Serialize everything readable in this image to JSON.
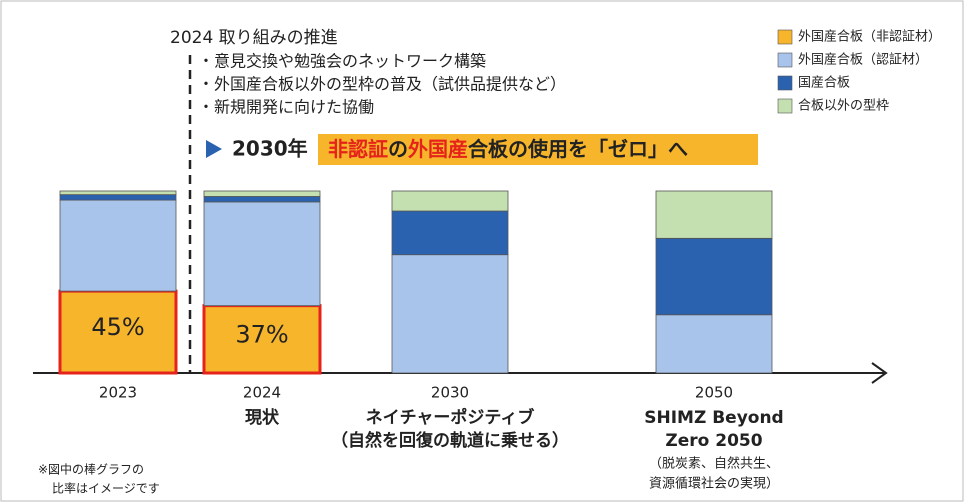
{
  "chart_data": {
    "type": "stacked-bar",
    "heading": "2024 取り組みの推進",
    "bullets": [
      "・意見交換や勉強会のネットワーク構築",
      "・外国産合板以外の型枠の普及（試供品提供など）",
      "・新規開発に向けた協働"
    ],
    "goal_year": "2030年",
    "goal": [
      {
        "text": "非認証",
        "color": "#e5231b"
      },
      {
        "text": "の",
        "color": "#222222"
      },
      {
        "text": "外国産",
        "color": "#e5231b"
      },
      {
        "text": "合板の使用を「ゼロ」へ",
        "color": "#222222"
      }
    ],
    "goal_background": "#f7b52c",
    "categories": [
      "2023",
      "2024",
      "2030",
      "2050"
    ],
    "category_sublabels": [
      null,
      [
        "現状"
      ],
      [
        "ネイチャーポジティブ",
        "（自然を回復の軌道に乗せる）"
      ],
      [
        "SHIMZ Beyond",
        "Zero 2050",
        "（脱炭素、自然共生、",
        "資源循環社会の実現）"
      ]
    ],
    "series": [
      {
        "name": "外国産合板（非認証材）",
        "color": "#f7b52c",
        "values": [
          45,
          37,
          0,
          0
        ],
        "value_labels": [
          "45%",
          "37%",
          null,
          null
        ],
        "highlight": "#e5231b"
      },
      {
        "name": "外国産合板（認証材）",
        "color": "#a9c4ea",
        "values": [
          50,
          57,
          65,
          32
        ]
      },
      {
        "name": "国産合板",
        "color": "#2a62b0",
        "values": [
          3,
          3,
          24,
          42
        ]
      },
      {
        "name": "合板以外の型枠",
        "color": "#c4e0b0",
        "values": [
          2,
          3,
          11,
          26
        ]
      }
    ],
    "legend": "top-right",
    "footnote": [
      "※図中の棒グラフの",
      "比率はイメージです"
    ]
  }
}
